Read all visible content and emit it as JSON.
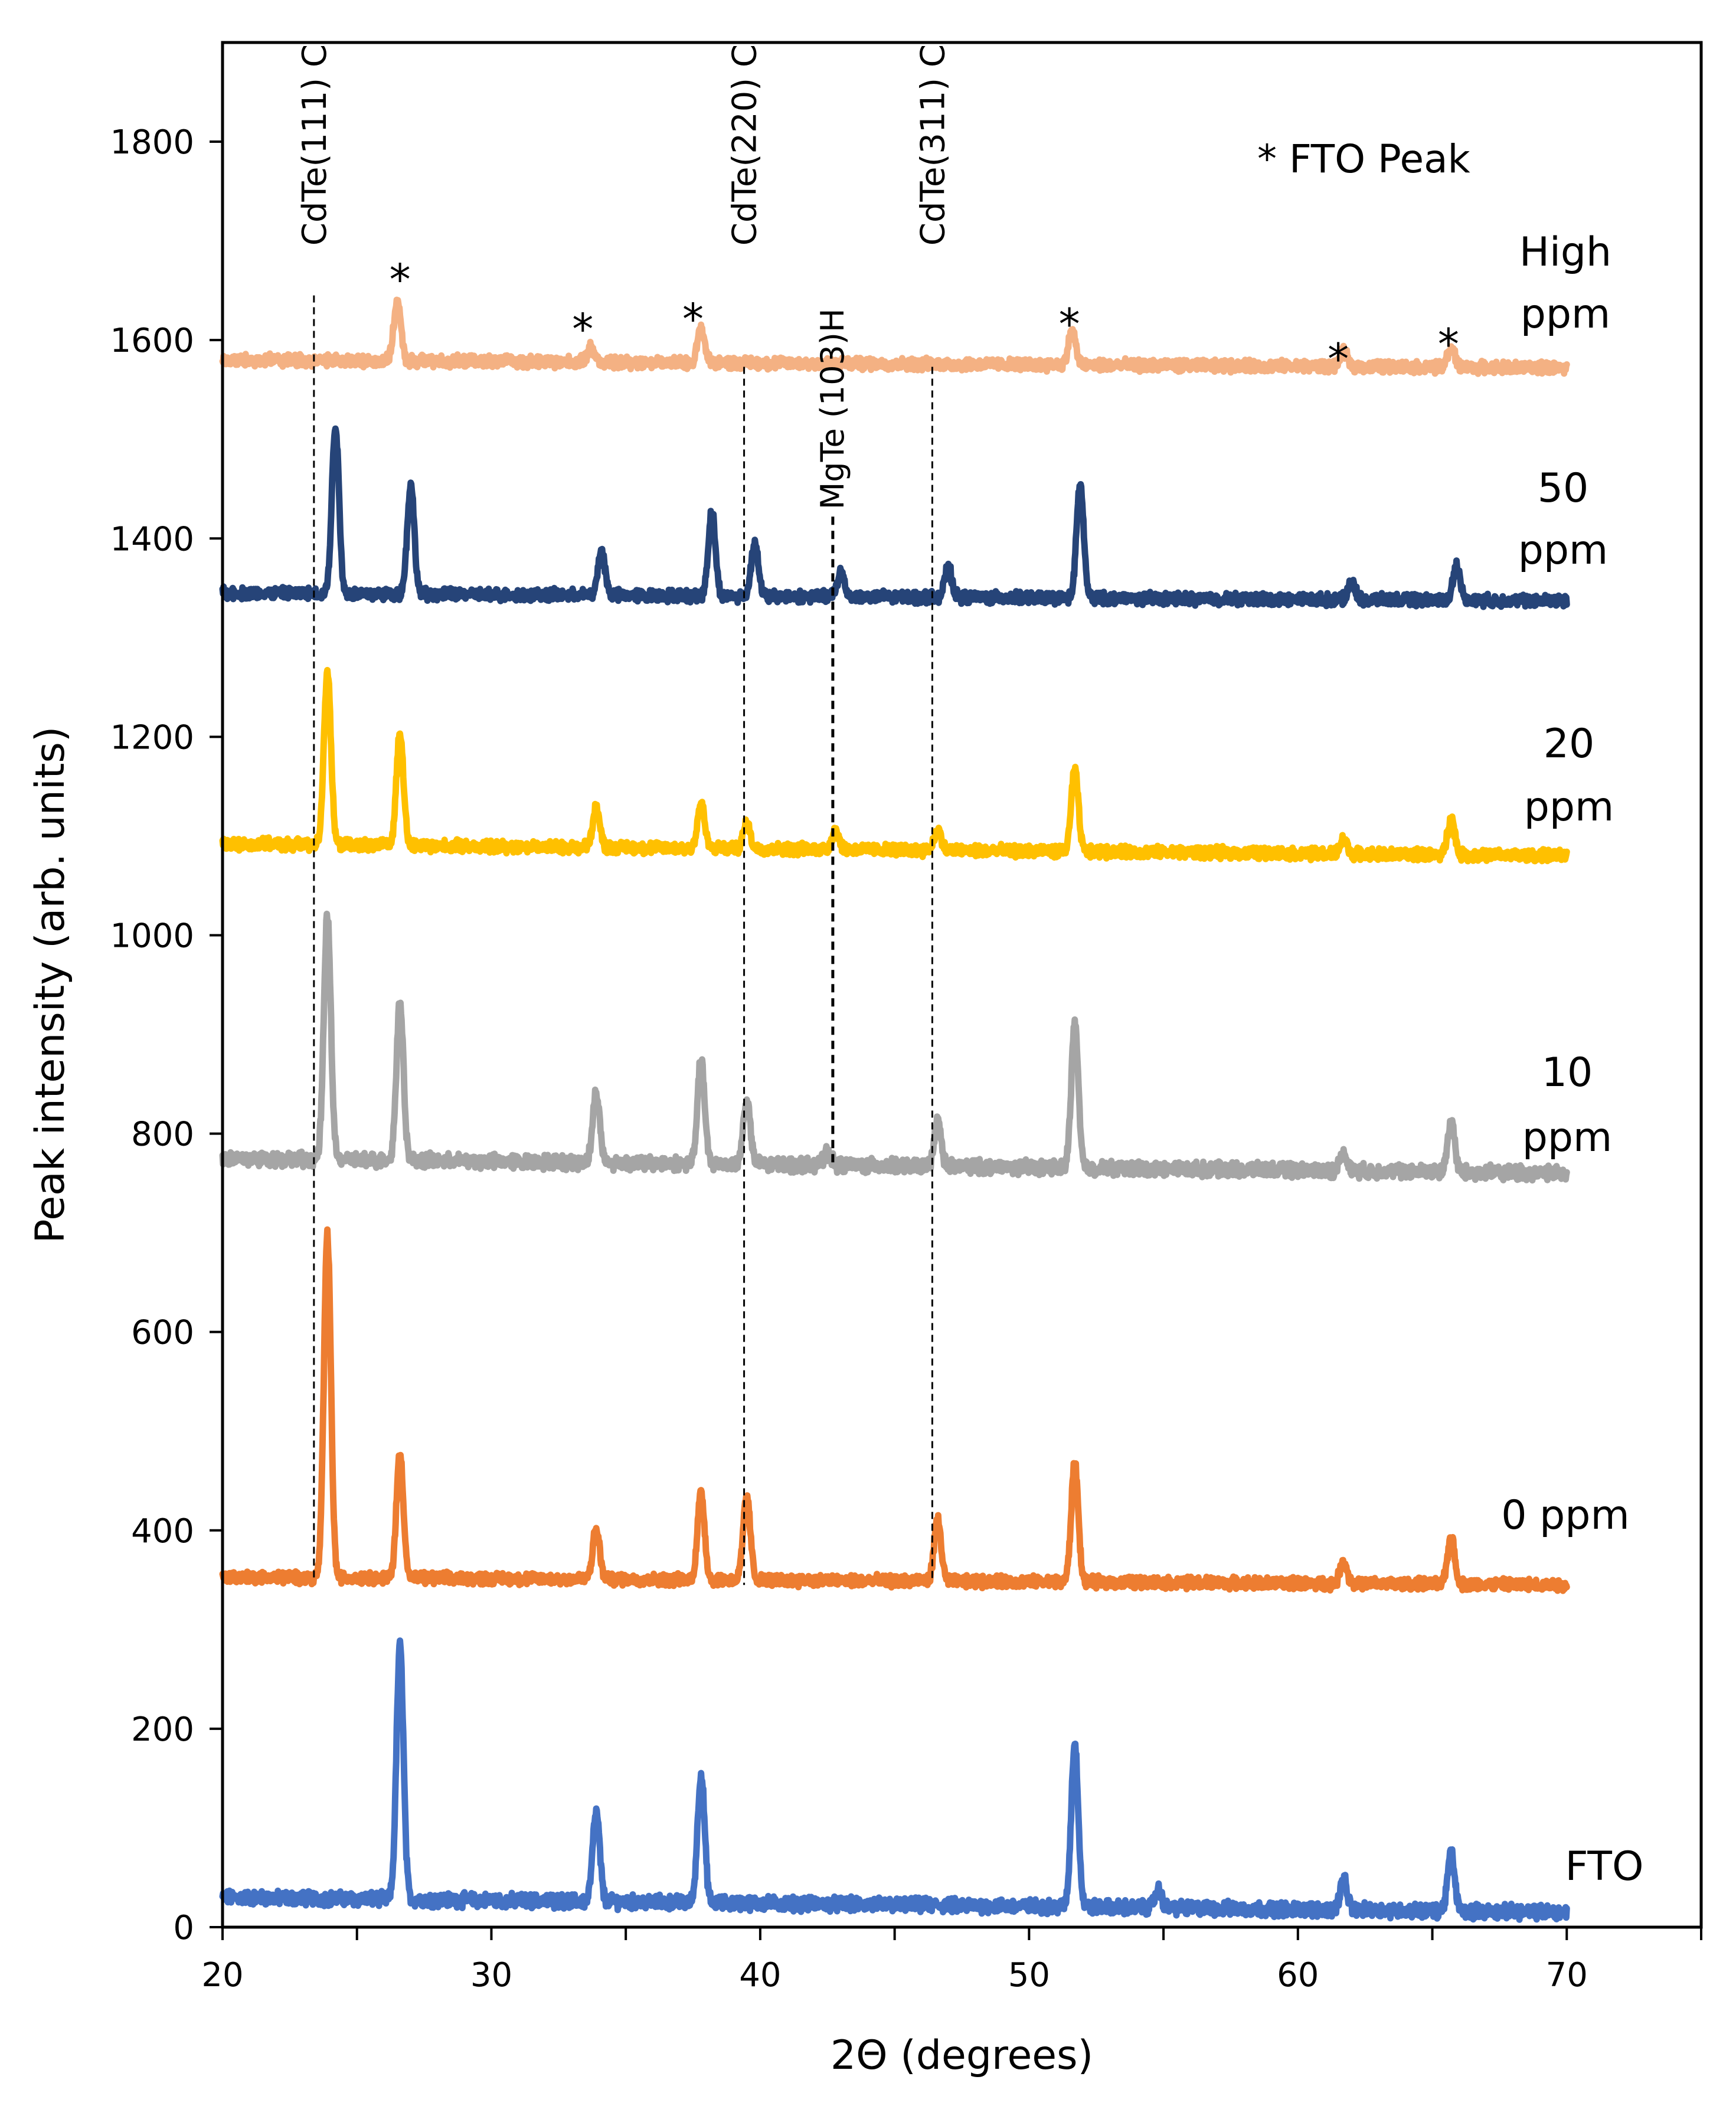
{
  "chart_data": {
    "type": "line",
    "title": "",
    "xlabel": "2Θ (degrees)",
    "ylabel": "Peak intensity (arb. units)",
    "xlim": [
      20,
      75
    ],
    "ylim": [
      0,
      1900
    ],
    "x_ticks": [
      20,
      30,
      40,
      50,
      60,
      70
    ],
    "y_ticks": [
      0,
      200,
      400,
      600,
      800,
      1000,
      1200,
      1400,
      1600,
      1800
    ],
    "legend_note": "* FTO Peak",
    "series": [
      {
        "name": "FTO",
        "label_lines": [
          "FTO"
        ],
        "color": "#4472C4",
        "baseline": 30,
        "baseline_end": 15,
        "noise": 6,
        "peaks": [
          [
            26.6,
            255
          ],
          [
            33.9,
            90
          ],
          [
            37.8,
            130
          ],
          [
            51.7,
            165
          ],
          [
            54.8,
            18
          ],
          [
            61.7,
            30
          ],
          [
            65.7,
            58
          ]
        ]
      },
      {
        "name": "0 ppm",
        "label_lines": [
          "0 ppm"
        ],
        "color": "#ED7D31",
        "baseline": 353,
        "baseline_end": 345,
        "noise": 5,
        "peaks": [
          [
            23.9,
            345
          ],
          [
            26.6,
            125
          ],
          [
            33.9,
            50
          ],
          [
            37.8,
            88
          ],
          [
            39.5,
            85
          ],
          [
            46.6,
            62
          ],
          [
            51.7,
            120
          ],
          [
            61.7,
            22
          ],
          [
            65.7,
            48
          ]
        ]
      },
      {
        "name": "10 ppm",
        "label_lines": [
          "10",
          "ppm"
        ],
        "color": "#A5A5A5",
        "baseline": 775,
        "baseline_end": 760,
        "noise": 6,
        "peaks": [
          [
            23.9,
            245
          ],
          [
            26.6,
            160
          ],
          [
            33.9,
            70
          ],
          [
            37.8,
            105
          ],
          [
            39.5,
            65
          ],
          [
            42.5,
            12
          ],
          [
            46.6,
            45
          ],
          [
            51.7,
            145
          ],
          [
            61.7,
            18
          ],
          [
            65.7,
            52
          ]
        ]
      },
      {
        "name": "20 ppm",
        "label_lines": [
          "20",
          "ppm"
        ],
        "color": "#FFC000",
        "baseline": 1092,
        "baseline_end": 1080,
        "noise": 5,
        "peaks": [
          [
            23.9,
            175
          ],
          [
            26.6,
            115
          ],
          [
            33.9,
            40
          ],
          [
            37.8,
            45
          ],
          [
            39.5,
            25
          ],
          [
            42.8,
            20
          ],
          [
            46.6,
            20
          ],
          [
            51.7,
            82
          ],
          [
            61.7,
            15
          ],
          [
            65.7,
            38
          ]
        ]
      },
      {
        "name": "50 ppm",
        "label_lines": [
          "50",
          "ppm"
        ],
        "color": "#264478",
        "baseline": 1345,
        "baseline_end": 1337,
        "noise": 5,
        "peaks": [
          [
            24.2,
            170
          ],
          [
            27.0,
            110
          ],
          [
            34.1,
            45
          ],
          [
            38.2,
            85
          ],
          [
            39.8,
            55
          ],
          [
            43.0,
            25
          ],
          [
            47.0,
            30
          ],
          [
            51.9,
            115
          ],
          [
            62.0,
            18
          ],
          [
            65.9,
            35
          ]
        ]
      },
      {
        "name": "High ppm",
        "label_lines": [
          "High",
          "ppm"
        ],
        "color": "#F4B183",
        "baseline": 1580,
        "baseline_end": 1572,
        "noise": 5,
        "peaks": [
          [
            26.5,
            60
          ],
          [
            33.7,
            15
          ],
          [
            37.8,
            35
          ],
          [
            51.6,
            35
          ],
          [
            61.7,
            15
          ],
          [
            65.7,
            20
          ]
        ]
      }
    ],
    "reference_lines": [
      {
        "label": "CdTe(111) C",
        "x": 23.4,
        "y_bottom": 350,
        "y_top": 1645
      },
      {
        "label": "CdTe(220) C",
        "x": 39.4,
        "y_bottom": 345,
        "y_top": 1573
      },
      {
        "label": "CdTe(311) C",
        "x": 46.4,
        "y_bottom": 350,
        "y_top": 1573
      }
    ],
    "phase_marker": {
      "label": "MgTe (103)H",
      "x": 42.7,
      "y_bottom": 770,
      "y_top": 1422
    },
    "fto_marks": [
      {
        "text": "*",
        "x": 26.6,
        "y": 1670
      },
      {
        "text": "*",
        "x": 33.4,
        "y": 1620
      },
      {
        "text": "*",
        "x": 37.5,
        "y": 1630
      },
      {
        "text": "*",
        "x": 51.5,
        "y": 1625
      },
      {
        "text": "*",
        "x": 61.5,
        "y": 1590
      },
      {
        "text": "*",
        "x": 65.6,
        "y": 1605
      }
    ]
  }
}
